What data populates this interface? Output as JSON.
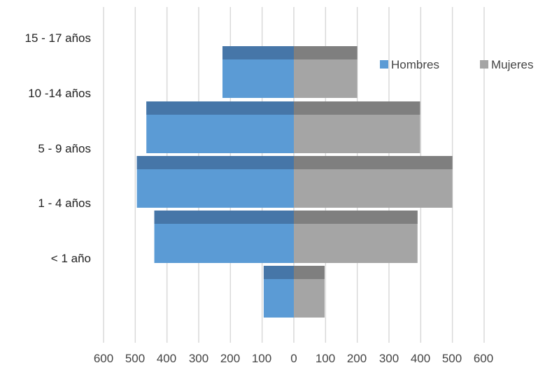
{
  "chart_data": {
    "type": "bar",
    "orientation": "horizontal",
    "layout": "population-pyramid",
    "y_tick_labels": [
      "15 - 17 años",
      "10 -14 años",
      "5 - 9 años",
      "1 - 4 años",
      "< 1 año"
    ],
    "x_tick_labels": [
      "600",
      "500",
      "400",
      "300",
      "200",
      "100",
      "0",
      "100",
      "200",
      "300",
      "400",
      "500",
      "600"
    ],
    "xlim": [
      -600,
      600
    ],
    "grid": "vertical",
    "legend_position": "top-right",
    "series": [
      {
        "name": "Hombres",
        "color": "#5b9bd5",
        "top_color": "#4676a8",
        "values": [
          225,
          465,
          495,
          440,
          95
        ]
      },
      {
        "name": "Mujeres",
        "color": "#a5a5a5",
        "top_color": "#7f7f7f",
        "values": [
          200,
          398,
          500,
          390,
          97
        ]
      }
    ]
  }
}
